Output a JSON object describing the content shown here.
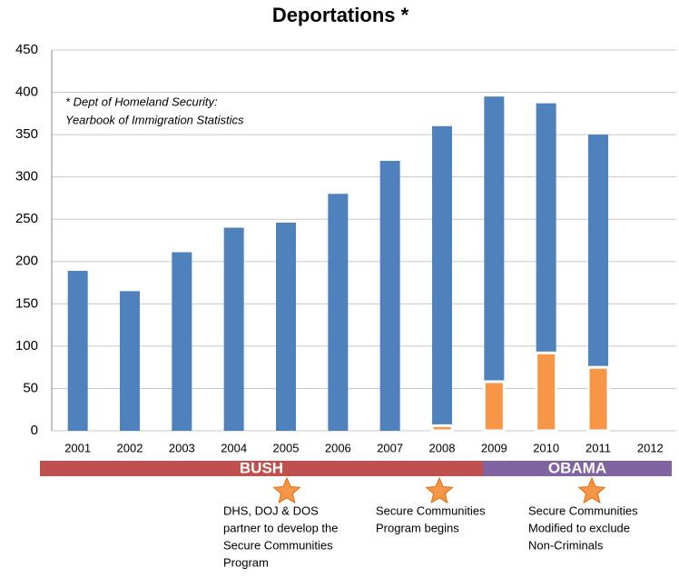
{
  "chart_data": {
    "type": "bar",
    "title": "Deportations *",
    "note": [
      "* Dept of Homeland Security:",
      "Yearbook of Immigration Statistics"
    ],
    "categories": [
      "2001",
      "2002",
      "2003",
      "2004",
      "2005",
      "2006",
      "2007",
      "2008",
      "2009",
      "2010",
      "2011",
      "2012"
    ],
    "series": [
      {
        "color": "#4f81bd",
        "values": [
          189,
          165,
          211,
          240,
          246,
          280,
          319,
          360,
          395,
          387,
          350,
          null
        ]
      },
      {
        "color": "#f79646",
        "values": [
          null,
          null,
          null,
          null,
          null,
          null,
          null,
          6,
          58,
          92,
          75,
          null
        ]
      }
    ],
    "ylim": [
      0,
      450
    ],
    "yticks": [
      0,
      50,
      100,
      150,
      200,
      250,
      300,
      350,
      400,
      450
    ],
    "grid": true,
    "periods": [
      "BUSH",
      "OBAMA"
    ],
    "annotations": [
      [
        "DHS, DOJ & DOS",
        "partner to develop the",
        "Secure Communities",
        "Program"
      ],
      [
        "Secure Communities",
        "Program begins"
      ],
      [
        "Secure Communities",
        "Modified to exclude",
        "Non-Criminals"
      ]
    ]
  }
}
